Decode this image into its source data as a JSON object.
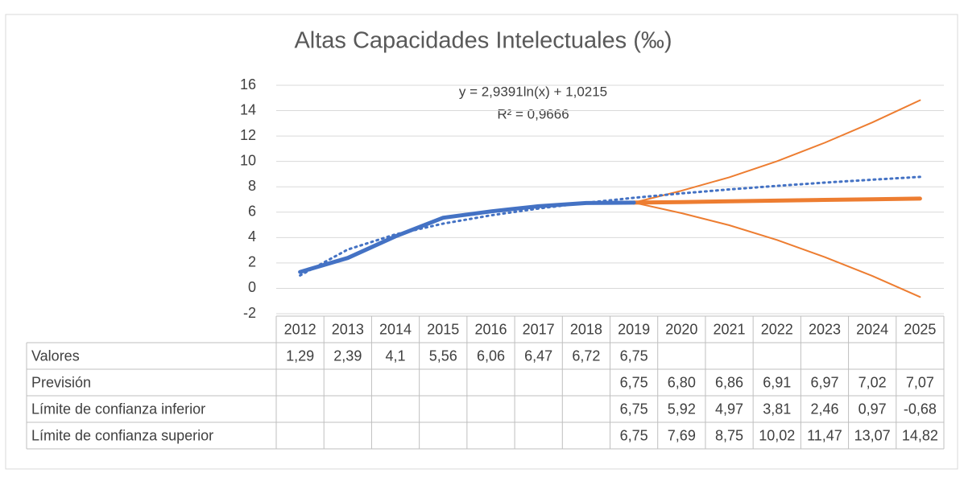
{
  "chart_data": {
    "type": "line",
    "title": "Altas Capacidades Intelectuales (‰)",
    "annotations": [
      "y = 2,9391ln(x) + 1,0215",
      "R² = 0,9666"
    ],
    "categories": [
      "2012",
      "2013",
      "2014",
      "2015",
      "2016",
      "2017",
      "2018",
      "2019",
      "2020",
      "2021",
      "2022",
      "2023",
      "2024",
      "2025"
    ],
    "series": [
      {
        "name": "Valores",
        "color": "#4472c4",
        "width": 5,
        "values": [
          1.29,
          2.39,
          4.1,
          5.56,
          6.06,
          6.47,
          6.72,
          6.75,
          null,
          null,
          null,
          null,
          null,
          null
        ],
        "value_labels": [
          "1,29",
          "2,39",
          "4,1",
          "5,56",
          "6,06",
          "6,47",
          "6,72",
          "6,75",
          null,
          null,
          null,
          null,
          null,
          null
        ]
      },
      {
        "name": "Previsión",
        "color": "#ed7d31",
        "width": 5,
        "values": [
          null,
          null,
          null,
          null,
          null,
          null,
          null,
          6.75,
          6.8,
          6.86,
          6.91,
          6.97,
          7.02,
          7.07
        ],
        "value_labels": [
          null,
          null,
          null,
          null,
          null,
          null,
          null,
          "6,75",
          "6,80",
          "6,86",
          "6,91",
          "6,97",
          "7,02",
          "7,07"
        ]
      },
      {
        "name": "Límite de confianza inferior",
        "color": "#ed7d31",
        "width": 2,
        "values": [
          null,
          null,
          null,
          null,
          null,
          null,
          null,
          6.75,
          5.92,
          4.97,
          3.81,
          2.46,
          0.97,
          -0.68
        ],
        "value_labels": [
          null,
          null,
          null,
          null,
          null,
          null,
          null,
          "6,75",
          "5,92",
          "4,97",
          "3,81",
          "2,46",
          "0,97",
          "-0,68"
        ]
      },
      {
        "name": "Límite de confianza superior",
        "color": "#ed7d31",
        "width": 2,
        "values": [
          null,
          null,
          null,
          null,
          null,
          null,
          null,
          6.75,
          7.69,
          8.75,
          10.02,
          11.47,
          13.07,
          14.82
        ],
        "value_labels": [
          null,
          null,
          null,
          null,
          null,
          null,
          null,
          "6,75",
          "7,69",
          "8,75",
          "10,02",
          "11,47",
          "13,07",
          "14,82"
        ]
      }
    ],
    "trendline": {
      "color": "#4472c4",
      "values": [
        1.02,
        3.06,
        4.25,
        5.1,
        5.75,
        6.29,
        6.74,
        7.13,
        7.48,
        7.79,
        8.07,
        8.33,
        8.56,
        8.78
      ]
    },
    "ylim": [
      -2,
      16
    ],
    "yticks": [
      -2,
      0,
      2,
      4,
      6,
      8,
      10,
      12,
      14,
      16
    ],
    "grid": true
  }
}
